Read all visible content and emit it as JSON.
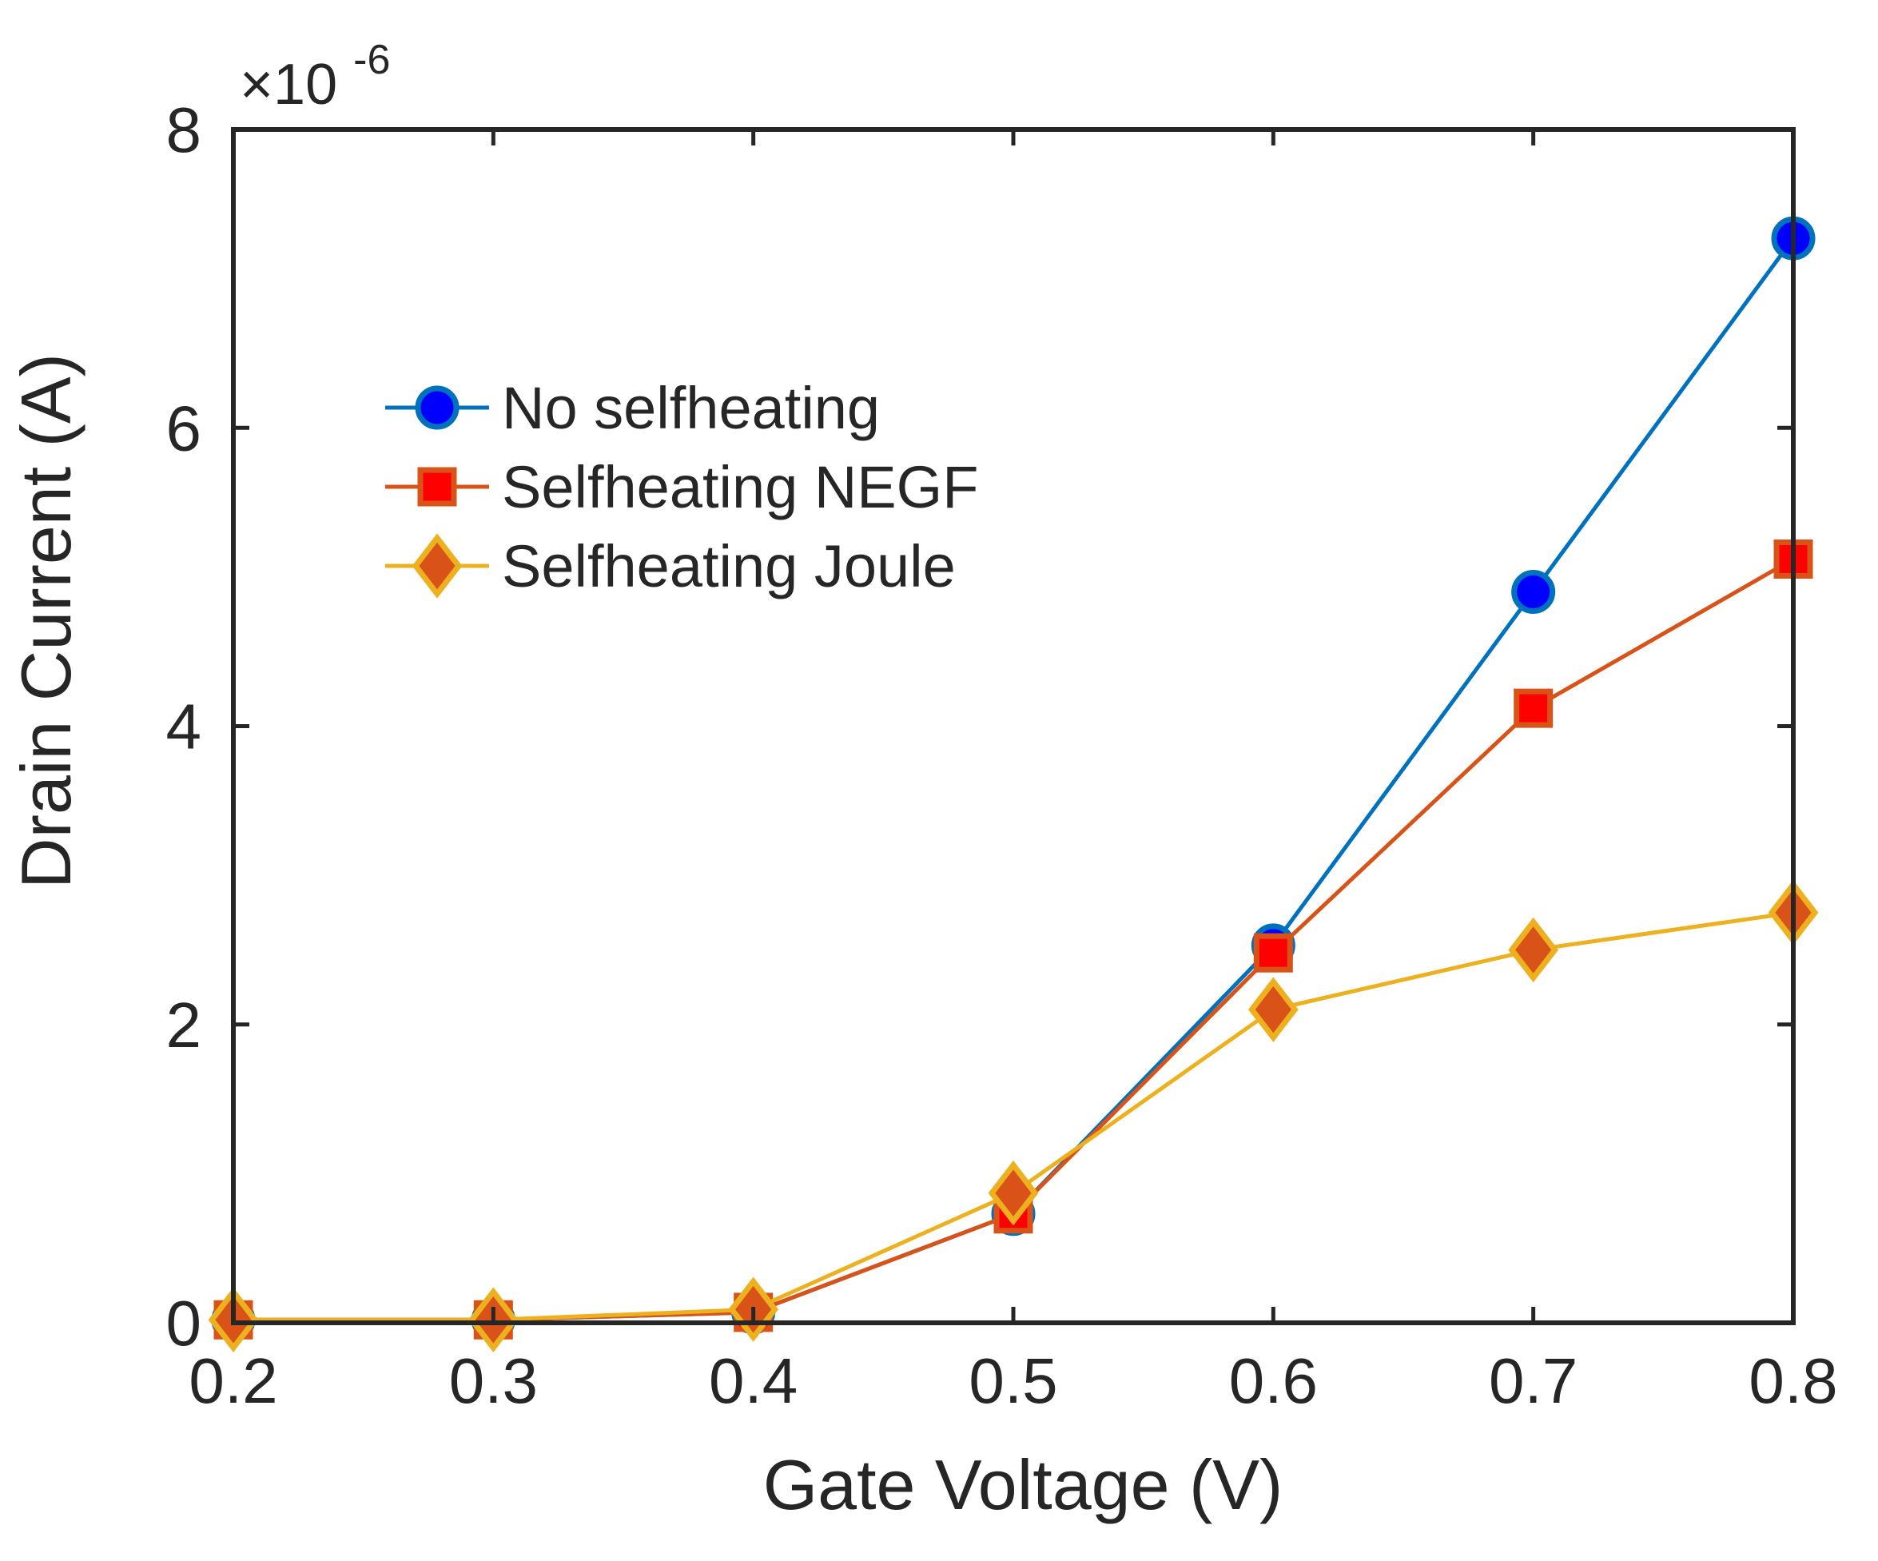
{
  "chart_data": {
    "type": "line",
    "title": "",
    "xlabel": "Gate Voltage (V)",
    "ylabel": "Drain Current (A)",
    "x": [
      0.2,
      0.3,
      0.4,
      0.5,
      0.6,
      0.7,
      0.8
    ],
    "xlim": [
      0.2,
      0.8
    ],
    "ylim": [
      0,
      8
    ],
    "xticks": [
      0.2,
      0.3,
      0.4,
      0.5,
      0.6,
      0.7,
      0.8
    ],
    "xtick_labels": [
      "0.2",
      "0.3",
      "0.4",
      "0.5",
      "0.6",
      "0.7",
      "0.8"
    ],
    "yticks": [
      0,
      2,
      4,
      6,
      8
    ],
    "ytick_labels": [
      "0",
      "2",
      "4",
      "6",
      "8"
    ],
    "y_exponent": {
      "base": "×10",
      "power": "-6"
    },
    "grid": false,
    "legend_position": "upper-left",
    "series": [
      {
        "name": "No selfheating",
        "marker": "circle",
        "line_color": "#0072BD",
        "marker_fill": "#0000FF",
        "marker_edge": "#0072BD",
        "values": [
          0.02,
          0.02,
          0.07,
          0.73,
          2.53,
          4.9,
          7.27
        ]
      },
      {
        "name": "Selfheating NEGF",
        "marker": "square",
        "line_color": "#D95319",
        "marker_fill": "#FF0000",
        "marker_edge": "#D95319",
        "values": [
          0.02,
          0.02,
          0.07,
          0.73,
          2.48,
          4.12,
          5.12
        ]
      },
      {
        "name": "Selfheating Joule",
        "marker": "diamond",
        "line_color": "#EDB120",
        "marker_fill": "#D95319",
        "marker_edge": "#EDB120",
        "values": [
          0.02,
          0.02,
          0.09,
          0.87,
          2.1,
          2.5,
          2.75
        ]
      }
    ]
  }
}
